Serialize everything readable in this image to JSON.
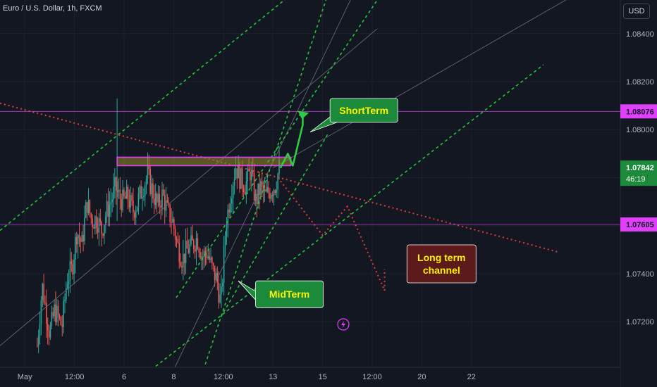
{
  "header": {
    "symbol_title": "Euro / U.S. Dollar, 1h, FXCM",
    "currency": "USD"
  },
  "colors": {
    "background": "#131722",
    "grid": "#1e222d",
    "bull": "#26a69a",
    "bear": "#ef5350",
    "green_dash": "#22c43a",
    "red_dot": "#e03c3c",
    "magenta": "#e040fb",
    "price_badge": "#1b8a3a",
    "thin_line": "#6b6f7a"
  },
  "chart_data": {
    "type": "candlestick",
    "symbol": "EURUSD",
    "timeframe": "1h",
    "y_axis": {
      "range": [
        1.0701,
        1.0854
      ],
      "ticks": [
        1.072,
        1.074,
        1.076,
        1.078,
        1.08,
        1.082,
        1.084
      ]
    },
    "x_axis": {
      "range": [
        -1.0,
        24.0
      ],
      "ticks": [
        {
          "label": "May",
          "x": 0
        },
        {
          "label": "12:00",
          "x": 2
        },
        {
          "label": "6",
          "x": 4
        },
        {
          "label": "8",
          "x": 6
        },
        {
          "label": "12:00",
          "x": 8
        },
        {
          "label": "13",
          "x": 10
        },
        {
          "label": "15",
          "x": 12
        },
        {
          "label": "12:00",
          "x": 14
        },
        {
          "label": "20",
          "x": 16
        },
        {
          "label": "22",
          "x": 18
        }
      ]
    },
    "candle_path": [
      [
        0.5,
        1.071
      ],
      [
        0.7,
        1.0735
      ],
      [
        1.0,
        1.0715
      ],
      [
        1.2,
        1.0725
      ],
      [
        1.5,
        1.0718
      ],
      [
        1.7,
        1.0738
      ],
      [
        1.9,
        1.0742
      ],
      [
        2.1,
        1.0758
      ],
      [
        2.3,
        1.0752
      ],
      [
        2.5,
        1.077
      ],
      [
        2.7,
        1.0762
      ],
      [
        2.9,
        1.0763
      ],
      [
        3.1,
        1.0758
      ],
      [
        3.3,
        1.0766
      ],
      [
        3.5,
        1.0771
      ],
      [
        3.65,
        1.0776
      ],
      [
        3.75,
        1.0773
      ],
      [
        3.95,
        1.077
      ],
      [
        4.15,
        1.0772
      ],
      [
        4.35,
        1.0766
      ],
      [
        4.55,
        1.077
      ],
      [
        4.75,
        1.0776
      ],
      [
        4.95,
        1.0781
      ],
      [
        5.15,
        1.0774
      ],
      [
        5.35,
        1.0768
      ],
      [
        5.55,
        1.0773
      ],
      [
        5.75,
        1.0766
      ],
      [
        5.95,
        1.0762
      ],
      [
        6.15,
        1.0752
      ],
      [
        6.35,
        1.0746
      ],
      [
        6.55,
        1.075
      ],
      [
        6.75,
        1.0752
      ],
      [
        6.95,
        1.0755
      ],
      [
        7.15,
        1.0747
      ],
      [
        7.35,
        1.0749
      ],
      [
        7.55,
        1.0742
      ],
      [
        7.75,
        1.0737
      ],
      [
        7.9,
        1.0727
      ],
      [
        8.1,
        1.076
      ],
      [
        8.3,
        1.0774
      ],
      [
        8.5,
        1.0785
      ],
      [
        8.7,
        1.0779
      ],
      [
        8.9,
        1.0777
      ],
      [
        9.1,
        1.0783
      ],
      [
        9.3,
        1.077
      ],
      [
        9.5,
        1.0776
      ],
      [
        9.7,
        1.0772
      ],
      [
        9.9,
        1.0775
      ],
      [
        10.1,
        1.0777
      ],
      [
        10.25,
        1.0784
      ]
    ],
    "drawn_candles": 185,
    "current_price": {
      "value": "1.07842",
      "countdown": "46:19",
      "y": 1.07842
    },
    "levels": [
      {
        "label": "1.08076",
        "value": 1.08076,
        "color": "#e040fb"
      },
      {
        "label": "1.07605",
        "value": 1.07605,
        "color": "#e040fb"
      }
    ],
    "zone": {
      "x_start": 3.72,
      "x_end": 10.72,
      "y_top": 1.07885,
      "y_bottom": 1.0785
    },
    "annotations": [
      {
        "text": "ShortTerm",
        "bg": "#1b8a3a",
        "fg": "#fff200"
      },
      {
        "text": "MidTerm",
        "bg": "#1b8a3a",
        "fg": "#fff200"
      },
      {
        "text": "Long term channel",
        "bg": "#5c1a1a",
        "fg": "#fff200"
      }
    ],
    "grid": true
  }
}
